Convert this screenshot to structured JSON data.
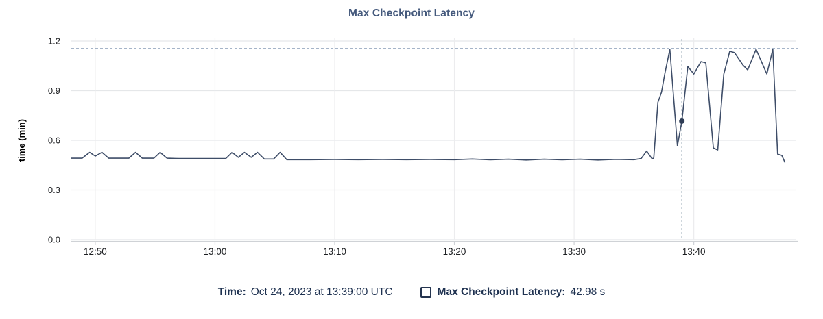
{
  "title": "Max Checkpoint Latency",
  "colors": {
    "series_line": "#3e4d68",
    "crosshair_dot": "#2e3c55",
    "crosshair_line": "#8d9dab",
    "max_reference_line": "#879cb6",
    "title_text": "#44597c",
    "title_underline": "#7e9cc4",
    "tooltip_text": "#1e3150",
    "axis_text": "#1c1e21",
    "gridline_h": "#e5e7e9",
    "gridline_v": "#ececee",
    "axis_line": "#cfd2d6"
  },
  "chart_data": {
    "type": "line",
    "title": "Max Checkpoint Latency",
    "xlabel": "",
    "ylabel": "time (min)",
    "ylim": [
      0,
      1.2
    ],
    "y_ticks": [
      "0.0",
      "0.3",
      "0.6",
      "0.9",
      "1.2"
    ],
    "x_ticks": [
      {
        "label": "12:50",
        "t": -10
      },
      {
        "label": "13:00",
        "t": 0
      },
      {
        "label": "13:10",
        "t": 10
      },
      {
        "label": "13:20",
        "t": 20
      },
      {
        "label": "13:30",
        "t": 30
      },
      {
        "label": "13:40",
        "t": 40
      }
    ],
    "t_unit": "minutes relative to 13:00 UTC",
    "t_range": [
      -12,
      48.5
    ],
    "grid": true,
    "max_reference_value_min": 1.155,
    "crosshair": {
      "t": 39,
      "value_min": 0.716
    },
    "series": [
      {
        "name": "Max Checkpoint Latency",
        "points": [
          [
            -12.0,
            0.492
          ],
          [
            -11.1,
            0.492
          ],
          [
            -10.47,
            0.527
          ],
          [
            -10.0,
            0.505
          ],
          [
            -9.44,
            0.527
          ],
          [
            -8.87,
            0.492
          ],
          [
            -7.2,
            0.492
          ],
          [
            -6.64,
            0.527
          ],
          [
            -6.07,
            0.492
          ],
          [
            -5.1,
            0.492
          ],
          [
            -4.58,
            0.527
          ],
          [
            -4.0,
            0.492
          ],
          [
            -3.0,
            0.49
          ],
          [
            -1.5,
            0.49
          ],
          [
            0.0,
            0.49
          ],
          [
            0.9,
            0.49
          ],
          [
            1.43,
            0.527
          ],
          [
            1.95,
            0.497
          ],
          [
            2.46,
            0.527
          ],
          [
            3.03,
            0.497
          ],
          [
            3.55,
            0.527
          ],
          [
            4.12,
            0.487
          ],
          [
            4.9,
            0.487
          ],
          [
            5.44,
            0.527
          ],
          [
            6.0,
            0.483
          ],
          [
            8.0,
            0.483
          ],
          [
            10.0,
            0.484
          ],
          [
            12.0,
            0.483
          ],
          [
            14.0,
            0.484
          ],
          [
            16.0,
            0.483
          ],
          [
            18.0,
            0.484
          ],
          [
            20.0,
            0.483
          ],
          [
            21.5,
            0.487
          ],
          [
            23.0,
            0.482
          ],
          [
            24.5,
            0.486
          ],
          [
            26.0,
            0.481
          ],
          [
            27.5,
            0.486
          ],
          [
            29.0,
            0.482
          ],
          [
            30.5,
            0.486
          ],
          [
            32.0,
            0.481
          ],
          [
            33.5,
            0.485
          ],
          [
            35.0,
            0.483
          ],
          [
            35.6,
            0.49
          ],
          [
            36.06,
            0.535
          ],
          [
            36.5,
            0.49
          ],
          [
            36.65,
            0.492
          ],
          [
            37.0,
            0.83
          ],
          [
            37.3,
            0.89
          ],
          [
            37.6,
            1.01
          ],
          [
            38.0,
            1.15
          ],
          [
            38.63,
            0.567
          ],
          [
            39.0,
            0.716
          ],
          [
            39.5,
            1.047
          ],
          [
            40.0,
            1.001
          ],
          [
            40.6,
            1.076
          ],
          [
            41.0,
            1.068
          ],
          [
            41.63,
            0.554
          ],
          [
            42.0,
            0.542
          ],
          [
            42.5,
            1.0
          ],
          [
            43.0,
            1.138
          ],
          [
            43.4,
            1.13
          ],
          [
            44.1,
            1.055
          ],
          [
            44.5,
            1.026
          ],
          [
            45.2,
            1.15
          ],
          [
            46.1,
            1.001
          ],
          [
            46.6,
            1.15
          ],
          [
            47.0,
            0.517
          ],
          [
            47.35,
            0.509
          ],
          [
            47.6,
            0.468
          ]
        ]
      }
    ]
  },
  "tooltip": {
    "time_label": "Time:",
    "time_value": "Oct 24, 2023 at 13:39:00 UTC",
    "series_label": "Max Checkpoint Latency:",
    "series_value": "42.98 s"
  }
}
